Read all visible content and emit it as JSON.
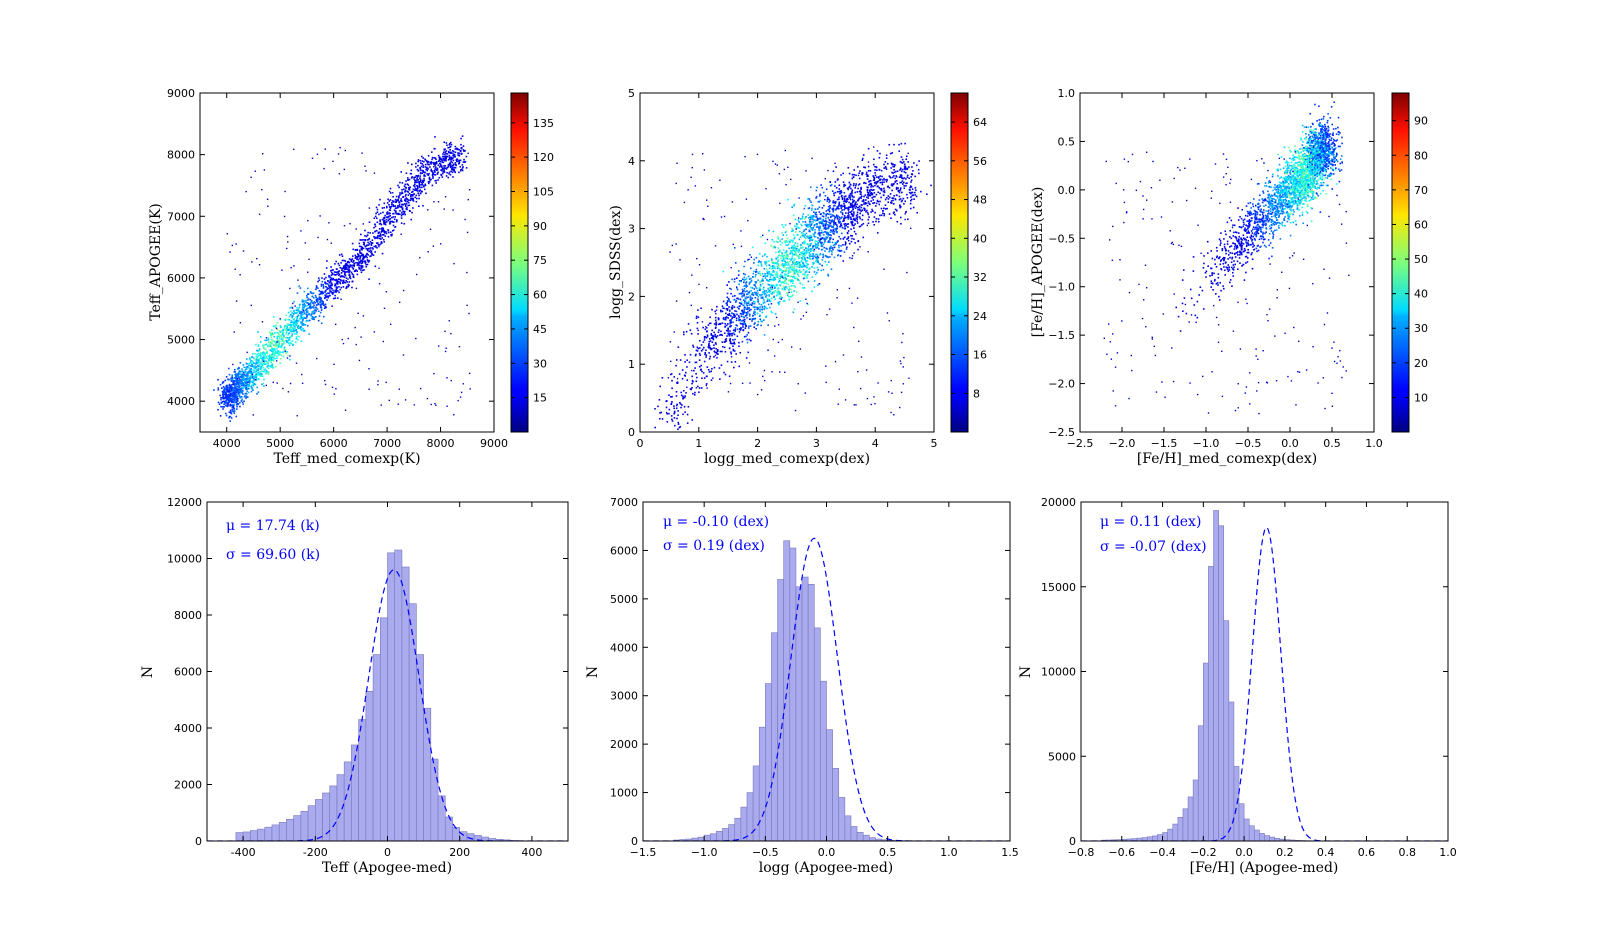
{
  "chart_data": [
    {
      "type": "heatmap",
      "xlabel": "Teff_med_comexp(K)",
      "ylabel": "Teff_APOGEE(K)",
      "xlim": [
        3500,
        9000
      ],
      "ylim": [
        3500,
        9000
      ],
      "xticks": [
        4000,
        5000,
        6000,
        7000,
        8000,
        9000
      ],
      "yticks": [
        4000,
        5000,
        6000,
        7000,
        8000,
        9000
      ],
      "colorbar": {
        "min": 0,
        "max": 148,
        "ticks": [
          15,
          30,
          45,
          60,
          75,
          90,
          105,
          120,
          135
        ]
      },
      "density_ridge": [
        [
          4000,
          4050
        ],
        [
          4500,
          4500
        ],
        [
          5000,
          5000
        ],
        [
          5500,
          5500
        ],
        [
          6000,
          5950
        ],
        [
          6500,
          6350
        ],
        [
          7000,
          7000
        ],
        [
          7500,
          7500
        ],
        [
          8000,
          7900
        ],
        [
          8400,
          8000
        ]
      ]
    },
    {
      "type": "heatmap",
      "xlabel": "logg_med_comexp(dex)",
      "ylabel": "logg_SDSS(dex)",
      "xlim": [
        0,
        5
      ],
      "ylim": [
        0,
        5
      ],
      "xticks": [
        0,
        1,
        2,
        3,
        4,
        5
      ],
      "yticks": [
        0,
        1,
        2,
        3,
        4,
        5
      ],
      "colorbar": {
        "min": 0,
        "max": 70,
        "ticks": [
          8,
          16,
          24,
          32,
          40,
          48,
          56,
          64
        ]
      },
      "density_ridge": [
        [
          0.5,
          0.3
        ],
        [
          1.0,
          1.1
        ],
        [
          1.5,
          1.6
        ],
        [
          2.0,
          2.1
        ],
        [
          2.5,
          2.45
        ],
        [
          3.0,
          2.9
        ],
        [
          3.5,
          3.3
        ],
        [
          4.0,
          3.6
        ],
        [
          4.5,
          3.7
        ]
      ]
    },
    {
      "type": "heatmap",
      "xlabel": "[Fe/H]_med_comexp(dex)",
      "ylabel": "[Fe/H]_APOGEE(dex)",
      "xlim": [
        -2.5,
        1.0
      ],
      "ylim": [
        -2.5,
        1.0
      ],
      "xticks": [
        -2.5,
        -2.0,
        -1.5,
        -1.0,
        -0.5,
        0.0,
        0.5,
        1.0
      ],
      "yticks": [
        -2.5,
        -2.0,
        -1.5,
        -1.0,
        -0.5,
        0.0,
        0.5,
        1.0
      ],
      "colorbar": {
        "min": 0,
        "max": 98,
        "ticks": [
          10,
          20,
          30,
          40,
          50,
          60,
          70,
          80,
          90
        ]
      },
      "density_ridge": [
        [
          -2.4,
          -2.3
        ],
        [
          -2.0,
          -1.9
        ],
        [
          -1.5,
          -1.5
        ],
        [
          -1.0,
          -0.9
        ],
        [
          -0.5,
          -0.45
        ],
        [
          0.0,
          0.0
        ],
        [
          0.3,
          0.3
        ],
        [
          0.4,
          0.45
        ]
      ]
    },
    {
      "type": "bar",
      "xlabel": "Teff (Apogee-med)",
      "ylabel": "N",
      "xlim": [
        -500,
        500
      ],
      "ylim": [
        0,
        12000
      ],
      "xticks": [
        -400,
        -200,
        0,
        200,
        400
      ],
      "yticks": [
        0,
        2000,
        4000,
        6000,
        8000,
        10000,
        12000
      ],
      "annotations": [
        "$\\mu$ = 17.74 (k)",
        "$\\sigma$ = 69.60 (k)"
      ],
      "annotation_display": [
        "μ = 17.74 (k)",
        "σ = 69.60 (k)"
      ],
      "bin_start": -420,
      "bin_width": 20,
      "values": [
        300,
        320,
        370,
        420,
        490,
        570,
        660,
        770,
        900,
        1050,
        1250,
        1470,
        1700,
        1950,
        2350,
        2800,
        3400,
        4300,
        5300,
        6600,
        7900,
        10200,
        10300,
        9700,
        8400,
        6600,
        4700,
        2900,
        1600,
        850,
        480,
        330,
        260,
        200,
        140,
        90,
        60,
        40,
        20,
        10,
        5
      ],
      "fit": {
        "mu": 17.74,
        "sigma": 69.6,
        "amplitude": 9600
      }
    },
    {
      "type": "bar",
      "xlabel": "logg (Apogee-med)",
      "ylabel": "N",
      "xlim": [
        -1.5,
        1.5
      ],
      "ylim": [
        0,
        7000
      ],
      "xticks": [
        -1.5,
        -1.0,
        -0.5,
        0.0,
        0.5,
        1.0,
        1.5
      ],
      "yticks": [
        0,
        1000,
        2000,
        3000,
        4000,
        5000,
        6000,
        7000
      ],
      "annotations": [
        "$\\mu$ = -0.10 (dex)",
        "$\\sigma$ = 0.19 (dex)"
      ],
      "annotation_display": [
        "μ = -0.10 (dex)",
        "σ = 0.19 (dex)"
      ],
      "bin_start": -1.25,
      "bin_width": 0.05,
      "values": [
        20,
        30,
        40,
        60,
        80,
        120,
        150,
        200,
        260,
        340,
        470,
        700,
        1000,
        1550,
        2350,
        3250,
        4300,
        5400,
        6200,
        6050,
        5250,
        5450,
        5300,
        4400,
        3300,
        2300,
        1500,
        900,
        520,
        300,
        180,
        120,
        70,
        40,
        25,
        15,
        10,
        8,
        6,
        5,
        4,
        3,
        2,
        1,
        1,
        1,
        1,
        1
      ],
      "fit": {
        "mu": -0.1,
        "sigma": 0.19,
        "amplitude": 6250
      }
    },
    {
      "type": "bar",
      "xlabel": "[Fe/H] (Apogee-med)",
      "ylabel": "N",
      "xlim": [
        -0.8,
        1.0
      ],
      "ylim": [
        0,
        20000
      ],
      "xticks": [
        -0.8,
        -0.6,
        -0.4,
        -0.2,
        0.0,
        0.2,
        0.4,
        0.6,
        0.8,
        1.0
      ],
      "yticks": [
        0,
        5000,
        10000,
        15000,
        20000
      ],
      "annotations": [
        "$\\mu$ = 0.11 (dex)",
        "$\\sigma$ = -0.07 (dex)"
      ],
      "annotation_display": [
        "μ = 0.11 (dex)",
        "σ = -0.07 (dex)"
      ],
      "bin_start": -0.7,
      "bin_width": 0.025,
      "values": [
        50,
        60,
        70,
        80,
        100,
        120,
        140,
        170,
        200,
        250,
        300,
        380,
        500,
        700,
        1000,
        1400,
        1900,
        2600,
        3600,
        6800,
        10500,
        16200,
        19500,
        18600,
        13000,
        8200,
        4400,
        2200,
        1300,
        900,
        650,
        450,
        320,
        230,
        160,
        110,
        80,
        60,
        40,
        30,
        20,
        15,
        10,
        8,
        5,
        3,
        2,
        1,
        1,
        1,
        1,
        1,
        1,
        1,
        1,
        1,
        1,
        1,
        1,
        1,
        1,
        1
      ],
      "fit": {
        "mu": 0.11,
        "sigma": 0.07,
        "amplitude": 18500
      }
    }
  ],
  "colors": {
    "hist_fill": "#aaaaee",
    "hist_edge": "#7777bb",
    "fit_line": "#0000ff",
    "annotation": "#0000ff"
  }
}
